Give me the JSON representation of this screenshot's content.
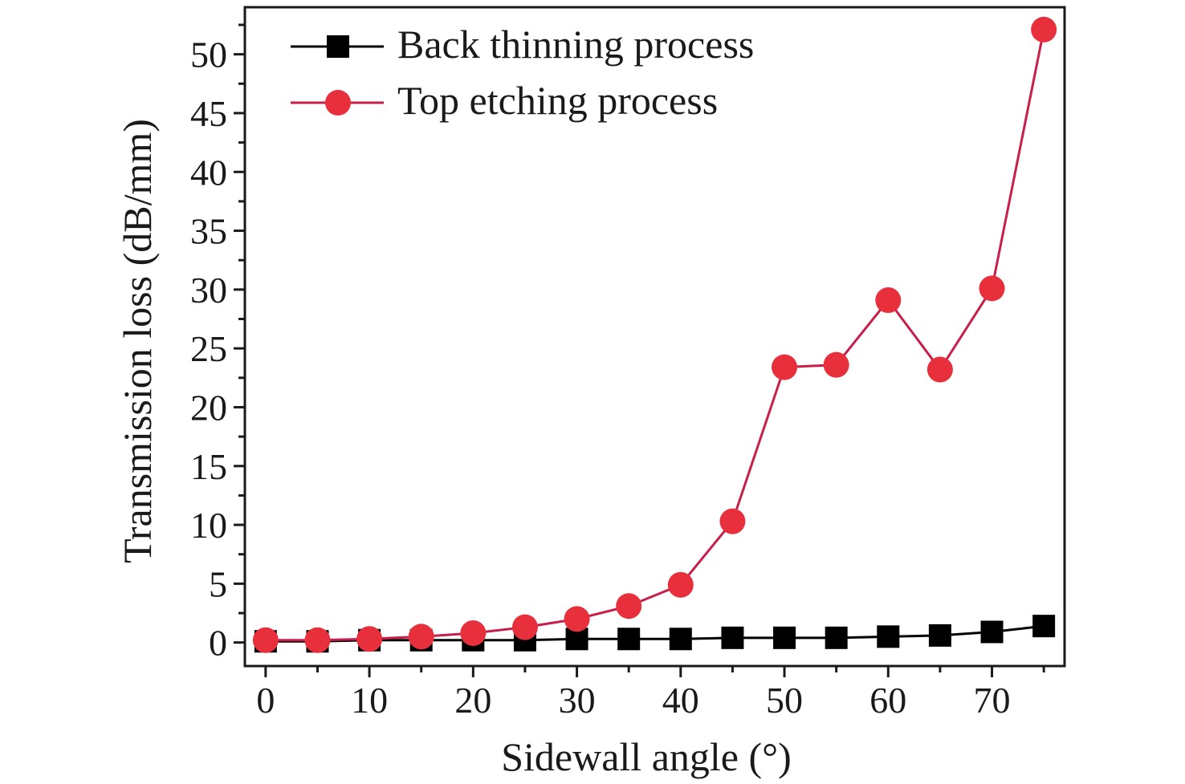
{
  "chart_data": {
    "type": "line",
    "title": "",
    "xlabel": "Sidewall angle (°)",
    "ylabel": "Transmission loss (dB/mm)",
    "xlim": [
      -2,
      77
    ],
    "ylim": [
      -2,
      54
    ],
    "x_ticks": [
      0,
      10,
      20,
      30,
      40,
      50,
      60,
      70
    ],
    "y_ticks": [
      0,
      5,
      10,
      15,
      20,
      25,
      30,
      35,
      40,
      45,
      50
    ],
    "x_minor_step": 5,
    "y_minor_step": 2.5,
    "grid": false,
    "legend_position": "top-left",
    "x": [
      0,
      5,
      10,
      15,
      20,
      25,
      30,
      35,
      40,
      45,
      50,
      55,
      60,
      65,
      70,
      75
    ],
    "series": [
      {
        "name": "Back thinning process",
        "marker": "square",
        "color": "#000000",
        "values": [
          0.1,
          0.1,
          0.2,
          0.2,
          0.2,
          0.2,
          0.3,
          0.3,
          0.3,
          0.4,
          0.4,
          0.4,
          0.5,
          0.6,
          0.9,
          1.4
        ]
      },
      {
        "name": "Top etching process",
        "marker": "circle",
        "color": "#e8303c",
        "line_color": "#c81e4a",
        "values": [
          0.2,
          0.2,
          0.3,
          0.5,
          0.8,
          1.3,
          2.0,
          3.1,
          4.9,
          10.3,
          23.4,
          23.6,
          29.1,
          23.2,
          30.1,
          52.1
        ]
      }
    ]
  }
}
